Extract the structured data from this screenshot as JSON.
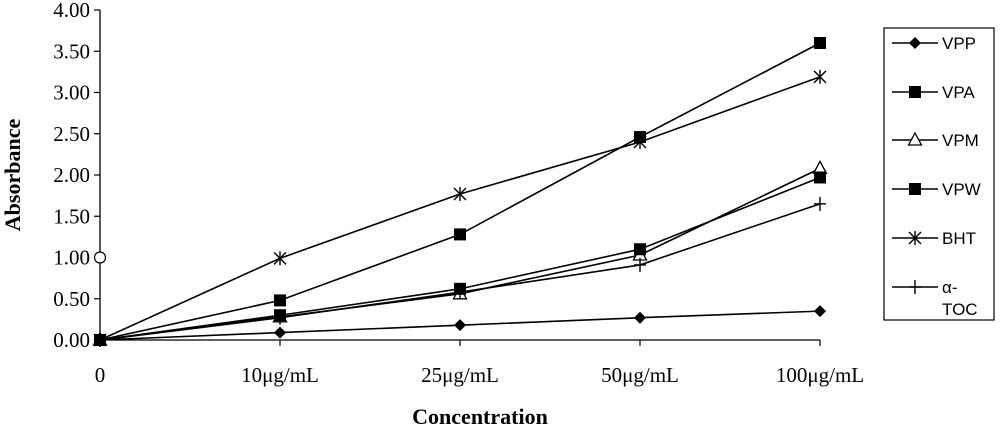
{
  "chart_data": {
    "type": "line",
    "xlabel": "Concentration",
    "ylabel": "Absorbance",
    "categories": [
      "0",
      "10μg/mL",
      "25μg/mL",
      "50μg/mL",
      "100μg/mL"
    ],
    "ylim": [
      0,
      4
    ],
    "yticks": [
      "0.00",
      "0.50",
      "1.00",
      "1.50",
      "2.00",
      "2.50",
      "3.00",
      "3.50",
      "4.00"
    ],
    "grid": false,
    "legend_position": "right",
    "series": [
      {
        "name": "VPP",
        "marker": "diamond",
        "values": [
          0,
          0.09,
          0.18,
          0.27,
          0.35
        ]
      },
      {
        "name": "VPA",
        "marker": "square",
        "values": [
          0,
          0.48,
          1.28,
          2.46,
          3.6
        ]
      },
      {
        "name": "VPM",
        "marker": "triangle",
        "values": [
          0,
          0.28,
          0.56,
          1.03,
          2.08
        ]
      },
      {
        "name": "VPW",
        "marker": "square",
        "values": [
          0,
          0.3,
          0.62,
          1.1,
          1.97
        ]
      },
      {
        "name": "BHT",
        "marker": "star",
        "values": [
          0,
          0.99,
          1.77,
          2.4,
          3.19
        ]
      },
      {
        "name": "α-TOC",
        "marker": "plus",
        "values": [
          0,
          0.27,
          0.58,
          0.91,
          1.65
        ]
      }
    ],
    "annotations": [
      {
        "marker": "circle",
        "category": "0",
        "value": 1.0
      }
    ]
  }
}
